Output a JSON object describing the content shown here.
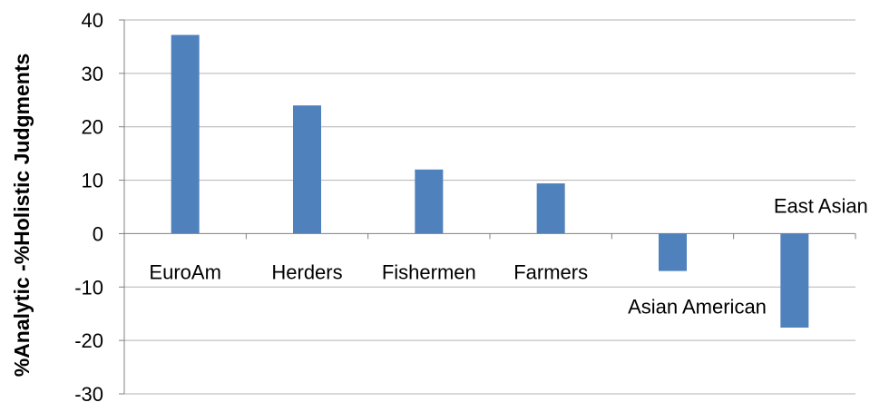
{
  "chart_data": {
    "type": "bar",
    "title": "",
    "xlabel": "",
    "ylabel": "%Analytic -%Holistic Judgments",
    "categories": [
      "EuroAm",
      "Herders",
      "Fishermen",
      "Farmers",
      "Asian American",
      "East Asian"
    ],
    "values": [
      37.2,
      24.0,
      12.0,
      9.4,
      -7.0,
      -17.6
    ],
    "ylim": [
      -30,
      40
    ],
    "yticks": [
      "40",
      "30",
      "20",
      "10",
      "0",
      "-10",
      "-20",
      "-30"
    ],
    "grid": true,
    "legend": "none",
    "bar_color": "#4F81BD"
  }
}
